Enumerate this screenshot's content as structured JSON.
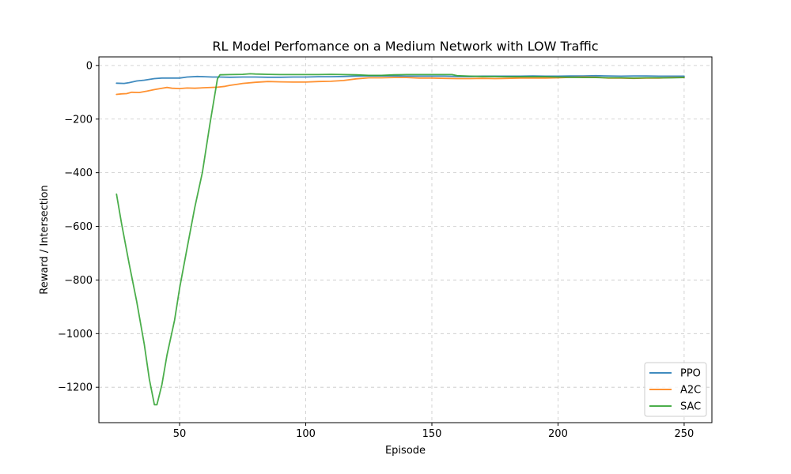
{
  "chart_data": {
    "type": "line",
    "title": "RL Model Perfomance on a Medium Network with LOW Traffic",
    "xlabel": "Episode",
    "ylabel": "Reward / Intersection",
    "xlim": [
      18,
      261
    ],
    "ylim": [
      -1332,
      32
    ],
    "xticks": [
      50,
      100,
      150,
      200,
      250
    ],
    "yticks": [
      0,
      -200,
      -400,
      -600,
      -800,
      -1000,
      -1200
    ],
    "grid": true,
    "legend_position": "lower-right",
    "series": [
      {
        "name": "PPO",
        "color": "#1f77b4",
        "points": [
          [
            25,
            -66
          ],
          [
            28,
            -67
          ],
          [
            30,
            -64
          ],
          [
            33,
            -58
          ],
          [
            36,
            -55
          ],
          [
            40,
            -49
          ],
          [
            43,
            -47
          ],
          [
            47,
            -47
          ],
          [
            50,
            -47
          ],
          [
            53,
            -43
          ],
          [
            57,
            -41
          ],
          [
            60,
            -42
          ],
          [
            63,
            -43
          ],
          [
            66,
            -43
          ],
          [
            70,
            -44
          ],
          [
            75,
            -43
          ],
          [
            80,
            -43
          ],
          [
            85,
            -44
          ],
          [
            90,
            -44
          ],
          [
            95,
            -43
          ],
          [
            100,
            -43
          ],
          [
            105,
            -42
          ],
          [
            110,
            -42
          ],
          [
            115,
            -41
          ],
          [
            120,
            -40
          ],
          [
            125,
            -39
          ],
          [
            130,
            -39
          ],
          [
            135,
            -39
          ],
          [
            140,
            -40
          ],
          [
            145,
            -40
          ],
          [
            150,
            -40
          ],
          [
            155,
            -40
          ],
          [
            160,
            -41
          ],
          [
            165,
            -41
          ],
          [
            170,
            -40
          ],
          [
            175,
            -40
          ],
          [
            180,
            -40
          ],
          [
            185,
            -40
          ],
          [
            190,
            -39
          ],
          [
            195,
            -40
          ],
          [
            200,
            -40
          ],
          [
            205,
            -39
          ],
          [
            210,
            -39
          ],
          [
            215,
            -38
          ],
          [
            220,
            -39
          ],
          [
            225,
            -40
          ],
          [
            230,
            -39
          ],
          [
            235,
            -39
          ],
          [
            240,
            -40
          ],
          [
            245,
            -40
          ],
          [
            250,
            -40
          ]
        ]
      },
      {
        "name": "A2C",
        "color": "#ff7f0e",
        "points": [
          [
            25,
            -108
          ],
          [
            27,
            -106
          ],
          [
            29,
            -105
          ],
          [
            31,
            -100
          ],
          [
            34,
            -101
          ],
          [
            37,
            -96
          ],
          [
            40,
            -90
          ],
          [
            43,
            -85
          ],
          [
            45,
            -82
          ],
          [
            47,
            -85
          ],
          [
            50,
            -86
          ],
          [
            53,
            -84
          ],
          [
            56,
            -85
          ],
          [
            60,
            -83
          ],
          [
            65,
            -81
          ],
          [
            68,
            -78
          ],
          [
            70,
            -74
          ],
          [
            73,
            -70
          ],
          [
            75,
            -67
          ],
          [
            80,
            -63
          ],
          [
            85,
            -60
          ],
          [
            90,
            -61
          ],
          [
            95,
            -62
          ],
          [
            100,
            -62
          ],
          [
            105,
            -60
          ],
          [
            110,
            -59
          ],
          [
            115,
            -56
          ],
          [
            120,
            -50
          ],
          [
            125,
            -46
          ],
          [
            130,
            -46
          ],
          [
            135,
            -45
          ],
          [
            140,
            -45
          ],
          [
            145,
            -47
          ],
          [
            150,
            -47
          ],
          [
            155,
            -48
          ],
          [
            160,
            -49
          ],
          [
            165,
            -49
          ],
          [
            170,
            -48
          ],
          [
            175,
            -49
          ],
          [
            180,
            -48
          ],
          [
            185,
            -47
          ],
          [
            190,
            -47
          ],
          [
            195,
            -47
          ],
          [
            200,
            -46
          ],
          [
            205,
            -44
          ],
          [
            210,
            -43
          ],
          [
            215,
            -44
          ],
          [
            220,
            -47
          ],
          [
            225,
            -47
          ],
          [
            230,
            -48
          ],
          [
            235,
            -47
          ],
          [
            240,
            -47
          ],
          [
            245,
            -45
          ],
          [
            250,
            -45
          ]
        ]
      },
      {
        "name": "SAC",
        "color": "#2ca02c",
        "points": [
          [
            25,
            -480
          ],
          [
            27,
            -590
          ],
          [
            30,
            -740
          ],
          [
            33,
            -880
          ],
          [
            36,
            -1040
          ],
          [
            38,
            -1170
          ],
          [
            40,
            -1265
          ],
          [
            41,
            -1265
          ],
          [
            43,
            -1190
          ],
          [
            45,
            -1080
          ],
          [
            48,
            -950
          ],
          [
            50,
            -830
          ],
          [
            53,
            -680
          ],
          [
            56,
            -530
          ],
          [
            59,
            -400
          ],
          [
            62,
            -220
          ],
          [
            65,
            -50
          ],
          [
            66,
            -35
          ],
          [
            70,
            -34
          ],
          [
            75,
            -33
          ],
          [
            78,
            -31
          ],
          [
            80,
            -32
          ],
          [
            85,
            -33
          ],
          [
            90,
            -34
          ],
          [
            95,
            -34
          ],
          [
            100,
            -34
          ],
          [
            105,
            -34
          ],
          [
            110,
            -33
          ],
          [
            115,
            -34
          ],
          [
            120,
            -35
          ],
          [
            125,
            -37
          ],
          [
            130,
            -37
          ],
          [
            135,
            -35
          ],
          [
            140,
            -34
          ],
          [
            145,
            -34
          ],
          [
            150,
            -34
          ],
          [
            155,
            -34
          ],
          [
            158,
            -34
          ],
          [
            160,
            -38
          ],
          [
            165,
            -40
          ],
          [
            170,
            -41
          ],
          [
            175,
            -41
          ],
          [
            180,
            -42
          ],
          [
            185,
            -42
          ],
          [
            190,
            -42
          ],
          [
            195,
            -42
          ],
          [
            200,
            -43
          ],
          [
            205,
            -44
          ],
          [
            210,
            -45
          ],
          [
            215,
            -45
          ],
          [
            220,
            -46
          ],
          [
            225,
            -46
          ],
          [
            230,
            -47
          ],
          [
            235,
            -46
          ],
          [
            240,
            -46
          ],
          [
            245,
            -46
          ],
          [
            250,
            -45
          ]
        ]
      }
    ]
  }
}
